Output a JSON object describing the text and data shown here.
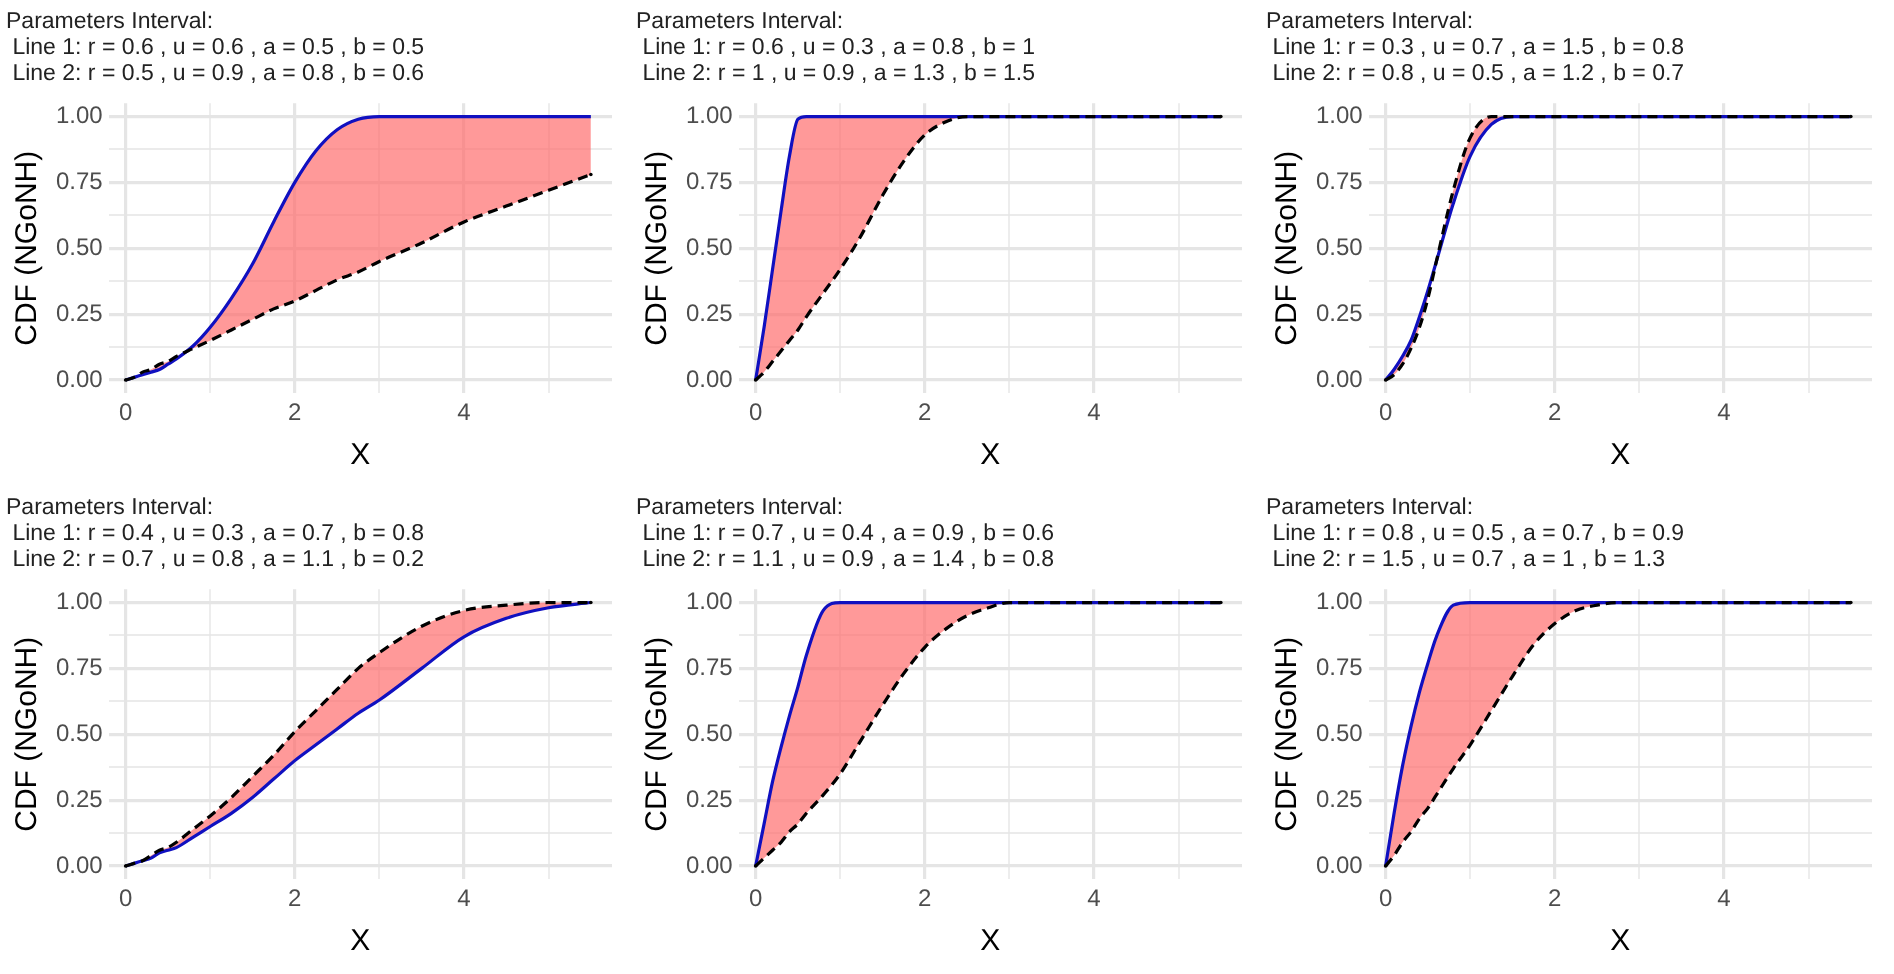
{
  "chart_data": [
    {
      "type": "line",
      "title": [
        "Parameters Interval:",
        " Line 1: r = 0.6 , u = 0.6 , a = 0.5 , b = 0.5",
        " Line 2: r = 0.5 , u = 0.9 , a = 0.8 , b = 0.6"
      ],
      "xlabel": "X",
      "ylabel": "CDF (NGoNH)",
      "x": [
        0,
        0.1,
        0.2,
        0.3,
        0.4,
        0.5,
        0.6,
        0.8,
        1,
        1.25,
        1.5,
        1.75,
        2,
        2.25,
        2.5,
        2.75,
        3,
        3.5,
        4,
        4.5,
        5,
        5.5
      ],
      "series": [
        {
          "color": "#1010c0",
          "line_style": "solid",
          "values": [
            0,
            0.01,
            0.02,
            0.03,
            0.04,
            0.06,
            0.08,
            0.13,
            0.2,
            0.31,
            0.44,
            0.6,
            0.75,
            0.87,
            0.95,
            0.99,
            1,
            1,
            1,
            1,
            1,
            1
          ],
          "lower": [
            0,
            0.01,
            0.03,
            0.04,
            0.06,
            0.07,
            0.09,
            0.12,
            0.15,
            0.19,
            0.23,
            0.27,
            0.3,
            0.34,
            0.38,
            0.41,
            0.45,
            0.52,
            0.6,
            0.66,
            0.72,
            0.78
          ],
          "upper": [
            0,
            0.01,
            0.02,
            0.03,
            0.04,
            0.06,
            0.08,
            0.13,
            0.2,
            0.31,
            0.44,
            0.6,
            0.75,
            0.87,
            0.95,
            0.99,
            1,
            1,
            1,
            1,
            1,
            1
          ]
        },
        {
          "color": "#000000",
          "line_style": "dashed",
          "values": [
            0,
            0.01,
            0.03,
            0.04,
            0.06,
            0.07,
            0.09,
            0.12,
            0.15,
            0.19,
            0.23,
            0.27,
            0.3,
            0.34,
            0.38,
            0.41,
            0.45,
            0.52,
            0.6,
            0.66,
            0.72,
            0.78
          ]
        }
      ],
      "xlim": [
        -0.2,
        5.75
      ],
      "ylim": [
        -0.05,
        1.05
      ],
      "xticks": [
        0,
        {
          "value": 1,
          "label": null
        },
        2,
        {
          "value": 3,
          "label": null
        },
        4,
        {
          "value": 5,
          "label": null
        }
      ],
      "yticks": [
        {
          "value": 0,
          "label": "0.00"
        },
        {
          "value": 0.125,
          "label": null
        },
        {
          "value": 0.25,
          "label": "0.25"
        },
        {
          "value": 0.375,
          "label": null
        },
        {
          "value": 0.5,
          "label": "0.50"
        },
        {
          "value": 0.625,
          "label": null
        },
        {
          "value": 0.75,
          "label": "0.75"
        },
        {
          "value": 0.875,
          "label": null
        },
        {
          "value": 1,
          "label": "1.00"
        }
      ],
      "grid": true,
      "marker": "none"
    },
    {
      "type": "line",
      "title": [
        "Parameters Interval:",
        " Line 1: r = 0.6 , u = 0.3 , a = 0.8 , b = 1",
        " Line 2: r = 1 , u = 0.9 , a = 1.3 , b = 1.5"
      ],
      "xlabel": "X",
      "ylabel": "CDF (NGoNH)",
      "x": [
        0,
        0.1,
        0.2,
        0.3,
        0.4,
        0.5,
        0.6,
        0.8,
        1,
        1.25,
        1.5,
        1.75,
        2,
        2.25,
        2.5,
        2.75,
        3,
        3.5,
        4,
        4.5,
        5,
        5.5
      ],
      "series": [
        {
          "color": "#1010c0",
          "line_style": "solid",
          "values": [
            0,
            0.2,
            0.42,
            0.64,
            0.85,
            0.99,
            1,
            1,
            1,
            1,
            1,
            1,
            1,
            1,
            1,
            1,
            1,
            1,
            1,
            1,
            1,
            1
          ],
          "lower": [
            0,
            0.03,
            0.07,
            0.11,
            0.15,
            0.19,
            0.24,
            0.33,
            0.42,
            0.55,
            0.7,
            0.83,
            0.93,
            0.98,
            1,
            1,
            1,
            1,
            1,
            1,
            1,
            1
          ],
          "upper": [
            0,
            0.2,
            0.42,
            0.64,
            0.85,
            0.99,
            1,
            1,
            1,
            1,
            1,
            1,
            1,
            1,
            1,
            1,
            1,
            1,
            1,
            1,
            1,
            1
          ]
        },
        {
          "color": "#000000",
          "line_style": "dashed",
          "values": [
            0,
            0.03,
            0.07,
            0.11,
            0.15,
            0.19,
            0.24,
            0.33,
            0.42,
            0.55,
            0.7,
            0.83,
            0.93,
            0.98,
            1,
            1,
            1,
            1,
            1,
            1,
            1,
            1
          ]
        }
      ],
      "xlim": [
        -0.2,
        5.75
      ],
      "ylim": [
        -0.05,
        1.05
      ],
      "xticks": [
        0,
        {
          "value": 1,
          "label": null
        },
        2,
        {
          "value": 3,
          "label": null
        },
        4,
        {
          "value": 5,
          "label": null
        }
      ],
      "yticks": [
        {
          "value": 0,
          "label": "0.00"
        },
        {
          "value": 0.125,
          "label": null
        },
        {
          "value": 0.25,
          "label": "0.25"
        },
        {
          "value": 0.375,
          "label": null
        },
        {
          "value": 0.5,
          "label": "0.50"
        },
        {
          "value": 0.625,
          "label": null
        },
        {
          "value": 0.75,
          "label": "0.75"
        },
        {
          "value": 0.875,
          "label": null
        },
        {
          "value": 1,
          "label": "1.00"
        }
      ],
      "grid": true,
      "marker": "none"
    },
    {
      "type": "line",
      "title": [
        "Parameters Interval:",
        " Line 1: r = 0.3 , u = 0.7 , a = 1.5 , b = 0.8",
        " Line 2: r = 0.8 , u = 0.5 , a = 1.2 , b = 0.7"
      ],
      "xlabel": "X",
      "ylabel": "CDF (NGoNH)",
      "x": [
        0,
        0.1,
        0.2,
        0.3,
        0.4,
        0.5,
        0.6,
        0.8,
        1,
        1.25,
        1.5,
        1.75,
        2,
        2.25,
        2.5,
        2.75,
        3,
        3.5,
        4,
        4.5,
        5,
        5.5
      ],
      "series": [
        {
          "color": "#1010c0",
          "line_style": "solid",
          "values": [
            0,
            0.04,
            0.09,
            0.15,
            0.24,
            0.34,
            0.45,
            0.67,
            0.85,
            0.97,
            1,
            1,
            1,
            1,
            1,
            1,
            1,
            1,
            1,
            1,
            1,
            1
          ],
          "lower": [
            0,
            0.02,
            0.06,
            0.12,
            0.2,
            0.31,
            0.45,
            0.72,
            0.92,
            1,
            1,
            1,
            1,
            1,
            1,
            1,
            1,
            1,
            1,
            1,
            1,
            1
          ],
          "upper": [
            0,
            0.04,
            0.09,
            0.15,
            0.24,
            0.34,
            0.45,
            0.67,
            0.85,
            0.97,
            1,
            1,
            1,
            1,
            1,
            1,
            1,
            1,
            1,
            1,
            1,
            1
          ]
        },
        {
          "color": "#000000",
          "line_style": "dashed",
          "values": [
            0,
            0.02,
            0.06,
            0.12,
            0.2,
            0.31,
            0.45,
            0.72,
            0.92,
            1,
            1,
            1,
            1,
            1,
            1,
            1,
            1,
            1,
            1,
            1,
            1,
            1
          ]
        }
      ],
      "xlim": [
        -0.2,
        5.75
      ],
      "ylim": [
        -0.05,
        1.05
      ],
      "xticks": [
        0,
        {
          "value": 1,
          "label": null
        },
        2,
        {
          "value": 3,
          "label": null
        },
        4,
        {
          "value": 5,
          "label": null
        }
      ],
      "yticks": [
        {
          "value": 0,
          "label": "0.00"
        },
        {
          "value": 0.125,
          "label": null
        },
        {
          "value": 0.25,
          "label": "0.25"
        },
        {
          "value": 0.375,
          "label": null
        },
        {
          "value": 0.5,
          "label": "0.50"
        },
        {
          "value": 0.625,
          "label": null
        },
        {
          "value": 0.75,
          "label": "0.75"
        },
        {
          "value": 0.875,
          "label": null
        },
        {
          "value": 1,
          "label": "1.00"
        }
      ],
      "grid": true,
      "marker": "none"
    },
    {
      "type": "line",
      "title": [
        "Parameters Interval:",
        " Line 1: r = 0.4 , u = 0.3 , a = 0.7 , b = 0.8",
        " Line 2: r = 0.7 , u = 0.8 , a = 1.1 , b = 0.2"
      ],
      "xlabel": "X",
      "ylabel": "CDF (NGoNH)",
      "x": [
        0,
        0.1,
        0.2,
        0.3,
        0.4,
        0.5,
        0.6,
        0.8,
        1,
        1.25,
        1.5,
        1.75,
        2,
        2.25,
        2.5,
        2.75,
        3,
        3.5,
        4,
        4.5,
        5,
        5.5
      ],
      "series": [
        {
          "color": "#1010c0",
          "line_style": "solid",
          "values": [
            0,
            0.01,
            0.02,
            0.03,
            0.05,
            0.06,
            0.07,
            0.11,
            0.15,
            0.2,
            0.26,
            0.33,
            0.4,
            0.46,
            0.52,
            0.58,
            0.63,
            0.75,
            0.87,
            0.94,
            0.98,
            1
          ],
          "lower": [
            0,
            0.01,
            0.02,
            0.03,
            0.05,
            0.06,
            0.07,
            0.11,
            0.15,
            0.2,
            0.26,
            0.33,
            0.4,
            0.46,
            0.52,
            0.58,
            0.63,
            0.75,
            0.87,
            0.94,
            0.98,
            1
          ],
          "upper": [
            0,
            0.01,
            0.02,
            0.04,
            0.06,
            0.07,
            0.09,
            0.14,
            0.19,
            0.26,
            0.34,
            0.42,
            0.51,
            0.59,
            0.67,
            0.75,
            0.81,
            0.91,
            0.97,
            0.99,
            1,
            1
          ]
        },
        {
          "color": "#000000",
          "line_style": "dashed",
          "values": [
            0,
            0.01,
            0.02,
            0.04,
            0.06,
            0.07,
            0.09,
            0.14,
            0.19,
            0.26,
            0.34,
            0.42,
            0.51,
            0.59,
            0.67,
            0.75,
            0.81,
            0.91,
            0.97,
            0.99,
            1,
            1
          ]
        }
      ],
      "xlim": [
        -0.2,
        5.75
      ],
      "ylim": [
        -0.05,
        1.05
      ],
      "xticks": [
        0,
        {
          "value": 1,
          "label": null
        },
        2,
        {
          "value": 3,
          "label": null
        },
        4,
        {
          "value": 5,
          "label": null
        }
      ],
      "yticks": [
        {
          "value": 0,
          "label": "0.00"
        },
        {
          "value": 0.125,
          "label": null
        },
        {
          "value": 0.25,
          "label": "0.25"
        },
        {
          "value": 0.375,
          "label": null
        },
        {
          "value": 0.5,
          "label": "0.50"
        },
        {
          "value": 0.625,
          "label": null
        },
        {
          "value": 0.75,
          "label": "0.75"
        },
        {
          "value": 0.875,
          "label": null
        },
        {
          "value": 1,
          "label": "1.00"
        }
      ],
      "grid": true,
      "marker": "none"
    },
    {
      "type": "line",
      "title": [
        "Parameters Interval:",
        " Line 1: r = 0.7 , u = 0.4 , a = 0.9 , b = 0.6",
        " Line 2: r = 1.1 , u = 0.9 , a = 1.4 , b = 0.8"
      ],
      "xlabel": "X",
      "ylabel": "CDF (NGoNH)",
      "x": [
        0,
        0.1,
        0.2,
        0.3,
        0.4,
        0.5,
        0.6,
        0.8,
        1,
        1.25,
        1.5,
        1.75,
        2,
        2.25,
        2.5,
        2.75,
        3,
        3.5,
        4,
        4.5,
        5,
        5.5
      ],
      "series": [
        {
          "color": "#1010c0",
          "line_style": "solid",
          "values": [
            0,
            0.16,
            0.32,
            0.45,
            0.57,
            0.68,
            0.8,
            0.97,
            1,
            1,
            1,
            1,
            1,
            1,
            1,
            1,
            1,
            1,
            1,
            1,
            1,
            1
          ],
          "lower": [
            0,
            0.03,
            0.06,
            0.09,
            0.13,
            0.16,
            0.2,
            0.27,
            0.35,
            0.48,
            0.61,
            0.73,
            0.83,
            0.9,
            0.95,
            0.98,
            1,
            1,
            1,
            1,
            1,
            1
          ],
          "upper": [
            0,
            0.16,
            0.32,
            0.45,
            0.57,
            0.68,
            0.8,
            0.97,
            1,
            1,
            1,
            1,
            1,
            1,
            1,
            1,
            1,
            1,
            1,
            1,
            1,
            1
          ]
        },
        {
          "color": "#000000",
          "line_style": "dashed",
          "values": [
            0,
            0.03,
            0.06,
            0.09,
            0.13,
            0.16,
            0.2,
            0.27,
            0.35,
            0.48,
            0.61,
            0.73,
            0.83,
            0.9,
            0.95,
            0.98,
            1,
            1,
            1,
            1,
            1,
            1
          ]
        }
      ],
      "xlim": [
        -0.2,
        5.75
      ],
      "ylim": [
        -0.05,
        1.05
      ],
      "xticks": [
        0,
        {
          "value": 1,
          "label": null
        },
        2,
        {
          "value": 3,
          "label": null
        },
        4,
        {
          "value": 5,
          "label": null
        }
      ],
      "yticks": [
        {
          "value": 0,
          "label": "0.00"
        },
        {
          "value": 0.125,
          "label": null
        },
        {
          "value": 0.25,
          "label": "0.25"
        },
        {
          "value": 0.375,
          "label": null
        },
        {
          "value": 0.5,
          "label": "0.50"
        },
        {
          "value": 0.625,
          "label": null
        },
        {
          "value": 0.75,
          "label": "0.75"
        },
        {
          "value": 0.875,
          "label": null
        },
        {
          "value": 1,
          "label": "1.00"
        }
      ],
      "grid": true,
      "marker": "none"
    },
    {
      "type": "line",
      "title": [
        "Parameters Interval:",
        " Line 1: r = 0.8 , u = 0.5 , a = 0.7 , b = 0.9",
        " Line 2: r = 1.5 , u = 0.7 , a = 1 , b = 1.3"
      ],
      "xlabel": "X",
      "ylabel": "CDF (NGoNH)",
      "x": [
        0,
        0.1,
        0.2,
        0.3,
        0.4,
        0.5,
        0.6,
        0.8,
        1,
        1.25,
        1.5,
        1.75,
        2,
        2.25,
        2.5,
        2.75,
        3,
        3.5,
        4,
        4.5,
        5,
        5.5
      ],
      "series": [
        {
          "color": "#1010c0",
          "line_style": "solid",
          "values": [
            0,
            0.2,
            0.38,
            0.53,
            0.66,
            0.77,
            0.87,
            0.99,
            1,
            1,
            1,
            1,
            1,
            1,
            1,
            1,
            1,
            1,
            1,
            1,
            1,
            1
          ],
          "lower": [
            0,
            0.04,
            0.09,
            0.13,
            0.18,
            0.22,
            0.27,
            0.37,
            0.46,
            0.59,
            0.72,
            0.84,
            0.92,
            0.97,
            0.99,
            1,
            1,
            1,
            1,
            1,
            1,
            1
          ],
          "upper": [
            0,
            0.2,
            0.38,
            0.53,
            0.66,
            0.77,
            0.87,
            0.99,
            1,
            1,
            1,
            1,
            1,
            1,
            1,
            1,
            1,
            1,
            1,
            1,
            1,
            1
          ]
        },
        {
          "color": "#000000",
          "line_style": "dashed",
          "values": [
            0,
            0.04,
            0.09,
            0.13,
            0.18,
            0.22,
            0.27,
            0.37,
            0.46,
            0.59,
            0.72,
            0.84,
            0.92,
            0.97,
            0.99,
            1,
            1,
            1,
            1,
            1,
            1,
            1
          ]
        }
      ],
      "xlim": [
        -0.2,
        5.75
      ],
      "ylim": [
        -0.05,
        1.05
      ],
      "xticks": [
        0,
        {
          "value": 1,
          "label": null
        },
        2,
        {
          "value": 3,
          "label": null
        },
        4,
        {
          "value": 5,
          "label": null
        }
      ],
      "yticks": [
        {
          "value": 0,
          "label": "0.00"
        },
        {
          "value": 0.125,
          "label": null
        },
        {
          "value": 0.25,
          "label": "0.25"
        },
        {
          "value": 0.375,
          "label": null
        },
        {
          "value": 0.5,
          "label": "0.50"
        },
        {
          "value": 0.625,
          "label": null
        },
        {
          "value": 0.75,
          "label": "0.75"
        },
        {
          "value": 0.875,
          "label": null
        },
        {
          "value": 1,
          "label": "1.00"
        }
      ],
      "grid": true,
      "marker": "none"
    }
  ]
}
